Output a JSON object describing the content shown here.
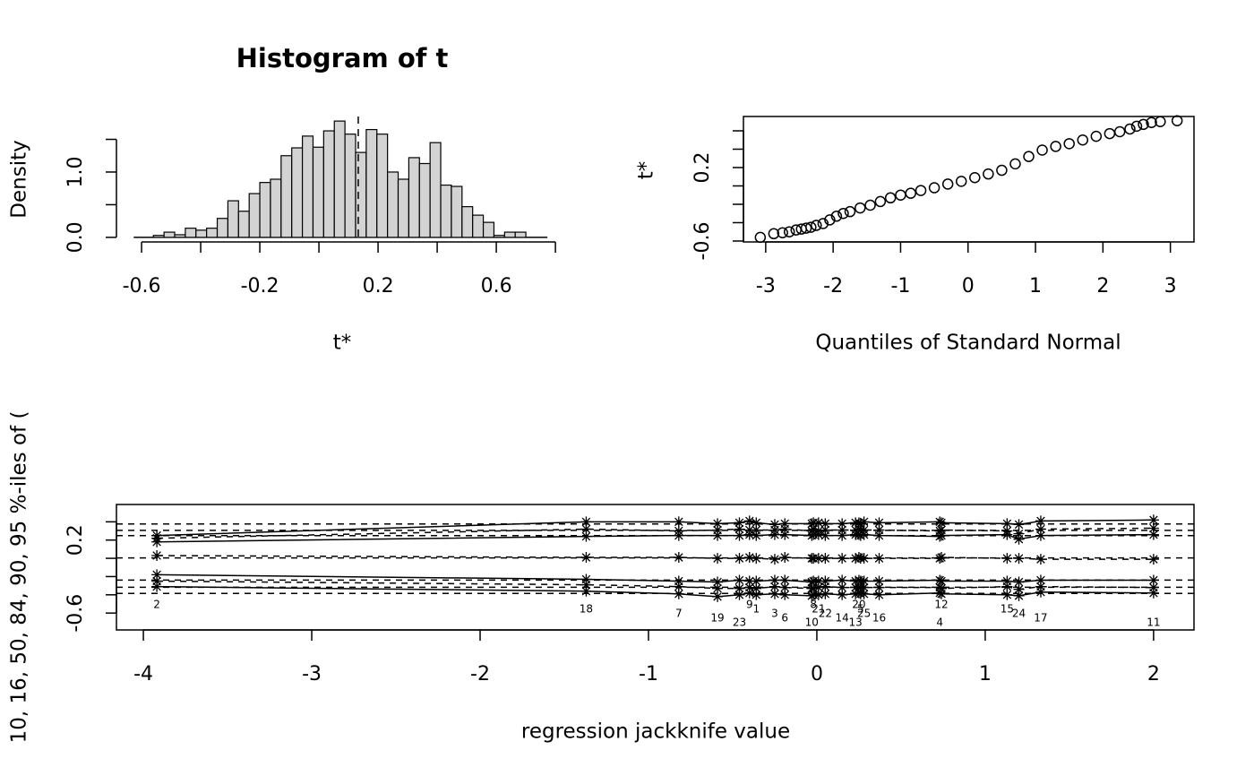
{
  "chart_data": [
    {
      "type": "histogram",
      "title": "Histogram of t",
      "xlabel": "t*",
      "ylabel": "Density",
      "bins": [
        -0.56,
        -0.524,
        -0.488,
        -0.452,
        -0.416,
        -0.38,
        -0.344,
        -0.308,
        -0.272,
        -0.236,
        -0.2,
        -0.164,
        -0.128,
        -0.092,
        -0.056,
        -0.02,
        0.016,
        0.052,
        0.088,
        0.124,
        0.16,
        0.196,
        0.232,
        0.268,
        0.304,
        0.34,
        0.376,
        0.412,
        0.448,
        0.484,
        0.52,
        0.556,
        0.592,
        0.628,
        0.664,
        0.7
      ],
      "values": [
        0.03,
        0.08,
        0.04,
        0.14,
        0.11,
        0.14,
        0.29,
        0.56,
        0.4,
        0.67,
        0.84,
        0.89,
        1.25,
        1.37,
        1.55,
        1.38,
        1.63,
        1.78,
        1.58,
        1.3,
        1.65,
        1.58,
        1.0,
        0.89,
        1.22,
        1.13,
        1.45,
        0.8,
        0.78,
        0.47,
        0.34,
        0.23,
        0.03,
        0.08,
        0.08
      ],
      "color": "#d3d3d3",
      "reference_x": 0.133,
      "xlim": [
        -0.685,
        0.83
      ],
      "ylim": [
        -0.07,
        1.85
      ],
      "xticks": [
        -0.6,
        -0.2,
        0.2,
        0.6
      ],
      "x_minor_ticks": [
        -0.4,
        0,
        0.4,
        0.8
      ],
      "yticks": [
        {
          "value": 0,
          "label": "0.0"
        },
        {
          "value": 1,
          "label": "1.0"
        }
      ],
      "y_minor_ticks": [
        0.5,
        1.5
      ],
      "box": false
    },
    {
      "type": "scatter",
      "xlabel": "Quantiles of Standard Normal",
      "ylabel": "t*",
      "marker": "circle",
      "x": [
        -3.08,
        -2.88,
        -2.75,
        -2.65,
        -2.55,
        -2.47,
        -2.4,
        -2.33,
        -2.25,
        -2.15,
        -2.05,
        -1.95,
        -1.85,
        -1.75,
        -1.6,
        -1.45,
        -1.3,
        -1.15,
        -1.0,
        -0.85,
        -0.7,
        -0.5,
        -0.3,
        -0.1,
        0.1,
        0.3,
        0.5,
        0.7,
        0.9,
        1.1,
        1.3,
        1.5,
        1.7,
        1.9,
        2.1,
        2.25,
        2.4,
        2.5,
        2.6,
        2.72,
        2.85,
        3.1
      ],
      "values": [
        -0.56,
        -0.52,
        -0.51,
        -0.5,
        -0.48,
        -0.47,
        -0.46,
        -0.45,
        -0.43,
        -0.41,
        -0.37,
        -0.33,
        -0.3,
        -0.28,
        -0.24,
        -0.21,
        -0.17,
        -0.13,
        -0.1,
        -0.08,
        -0.05,
        -0.02,
        0.02,
        0.05,
        0.09,
        0.13,
        0.17,
        0.24,
        0.32,
        0.39,
        0.43,
        0.46,
        0.5,
        0.54,
        0.57,
        0.59,
        0.62,
        0.65,
        0.67,
        0.69,
        0.7,
        0.71
      ],
      "xlim": [
        -3.33,
        3.35
      ],
      "ylim": [
        -0.61,
        0.756
      ],
      "xticks": [
        -3,
        -2,
        -1,
        0,
        1,
        2,
        3
      ],
      "x_minor_ticks": [],
      "yticks": [
        -0.6,
        0.2
      ],
      "y_minor_ticks": [
        -0.4,
        -0.2,
        0,
        0.4,
        0.6
      ],
      "box": true
    },
    {
      "type": "jackknife",
      "xlabel": "regression jackknife value",
      "ylabel": "10, 16, 50, 84, 90, 95 %-iles of (",
      "x": [
        -3.92,
        -1.37,
        -0.82,
        -0.59,
        -0.46,
        -0.4,
        -0.36,
        -0.25,
        -0.19,
        -0.03,
        -0.02,
        0.01,
        0.05,
        0.15,
        0.23,
        0.25,
        0.26,
        0.28,
        0.37,
        0.73,
        0.74,
        1.13,
        1.2,
        1.33,
        2.0
      ],
      "labels": [
        2,
        18,
        7,
        19,
        23,
        9,
        1,
        3,
        6,
        10,
        8,
        21,
        22,
        14,
        13,
        20,
        5,
        25,
        16,
        4,
        12,
        15,
        24,
        17,
        11
      ],
      "series": [
        {
          "line_style": "solid",
          "values": [
            -0.31,
            -0.36,
            -0.39,
            -0.42,
            -0.4,
            -0.38,
            -0.4,
            -0.39,
            -0.4,
            -0.41,
            -0.4,
            -0.4,
            -0.39,
            -0.4,
            -0.39,
            -0.38,
            -0.39,
            -0.39,
            -0.4,
            -0.38,
            -0.39,
            -0.4,
            -0.41,
            -0.37,
            -0.38
          ]
        },
        {
          "line_style": "dashed",
          "values": [
            -0.25,
            -0.29,
            -0.31,
            -0.33,
            -0.33,
            -0.32,
            -0.33,
            -0.31,
            -0.32,
            -0.33,
            -0.33,
            -0.32,
            -0.31,
            -0.32,
            -0.32,
            -0.32,
            -0.32,
            -0.32,
            -0.32,
            -0.32,
            -0.33,
            -0.31,
            -0.34,
            -0.31,
            -0.32
          ]
        },
        {
          "line_style": "solid",
          "values": [
            -0.18,
            -0.23,
            -0.25,
            -0.26,
            -0.24,
            -0.25,
            -0.25,
            -0.24,
            -0.24,
            -0.26,
            -0.25,
            -0.25,
            -0.25,
            -0.24,
            -0.25,
            -0.24,
            -0.25,
            -0.25,
            -0.25,
            -0.24,
            -0.25,
            -0.25,
            -0.26,
            -0.24,
            -0.24
          ]
        },
        {
          "line_style": "dashed",
          "values": [
            0.03,
            0.01,
            0.01,
            0,
            0,
            0.01,
            0,
            -0.01,
            0.01,
            0,
            0,
            0,
            0,
            0,
            0,
            0.01,
            0,
            0,
            0,
            0,
            0.01,
            0,
            0,
            -0.01,
            -0.01
          ]
        },
        {
          "line_style": "solid",
          "values": [
            0.18,
            0.24,
            0.25,
            0.25,
            0.25,
            0.26,
            0.25,
            0.26,
            0.26,
            0.25,
            0.26,
            0.26,
            0.25,
            0.25,
            0.26,
            0.26,
            0.25,
            0.26,
            0.25,
            0.24,
            0.25,
            0.26,
            0.21,
            0.25,
            0.26
          ]
        },
        {
          "line_style": "dashed",
          "values": [
            0.22,
            0.32,
            0.3,
            0.31,
            0.32,
            0.31,
            0.31,
            0.31,
            0.32,
            0.3,
            0.32,
            0.3,
            0.31,
            0.31,
            0.31,
            0.32,
            0.31,
            0.31,
            0.31,
            0.3,
            0.31,
            0.3,
            0.27,
            0.32,
            0.33
          ]
        },
        {
          "line_style": "solid",
          "values": [
            0.25,
            0.4,
            0.4,
            0.38,
            0.39,
            0.41,
            0.39,
            0.37,
            0.38,
            0.38,
            0.39,
            0.39,
            0.38,
            0.38,
            0.39,
            0.39,
            0.38,
            0.4,
            0.39,
            0.4,
            0.39,
            0.38,
            0.37,
            0.41,
            0.42
          ]
        }
      ],
      "reference_lines": [
        -0.385,
        -0.317,
        -0.239,
        0.005,
        0.249,
        0.307,
        0.376
      ],
      "xlim": [
        -4.16,
        2.24
      ],
      "ylim": [
        -0.785,
        0.59
      ],
      "xticks": [
        -4,
        -3,
        -2,
        -1,
        0,
        1,
        2
      ],
      "x_minor_ticks": [],
      "yticks": [
        -0.6,
        0.2
      ],
      "y_minor_ticks": [
        -0.4,
        -0.2,
        0,
        0.4
      ],
      "box": true
    }
  ]
}
